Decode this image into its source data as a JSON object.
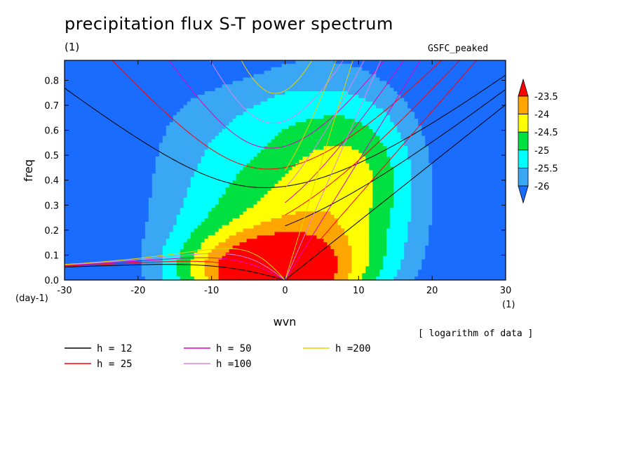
{
  "header": {
    "title": "precipitation flux S-T power spectrum",
    "units": "(1)",
    "dataset": "GSFC_peaked",
    "note": "[ logarithm of data ]"
  },
  "chart_data": {
    "type": "heatmap",
    "title": "precipitation flux S-T power spectrum",
    "xlabel": "wvn",
    "ylabel": "freq",
    "x_unit": "(1)",
    "y_unit": "(day-1)",
    "xlim": [
      -30,
      30
    ],
    "ylim": [
      0,
      0.88
    ],
    "x_ticks": [
      -30,
      -20,
      -10,
      0,
      10,
      20,
      30
    ],
    "x_tick_labels": [
      "-30",
      "-20",
      "-10",
      "0",
      "10",
      "20",
      "30"
    ],
    "y_ticks": [
      0,
      0.1,
      0.2,
      0.3,
      0.4,
      0.5,
      0.6,
      0.7,
      0.8
    ],
    "y_tick_labels": [
      "0.0",
      "0.1",
      "0.2",
      "0.3",
      "0.4",
      "0.5",
      "0.6",
      "0.7",
      "0.8"
    ],
    "colorbar": {
      "levels": [
        -26,
        -25.5,
        -25,
        -24.5,
        -24,
        -23.5
      ],
      "labels": [
        "-26",
        "-25.5",
        "-25",
        "-24.5",
        "-24",
        "-23.5"
      ],
      "colors": [
        "#1a6cff",
        "#3aa7f5",
        "#00ffff",
        "#00e040",
        "#ffff00",
        "#ffa500",
        "#ff0000"
      ]
    },
    "contour_levels": [
      -26,
      -25.5,
      -25,
      -24.5,
      -24,
      -23.5
    ],
    "dispersion_curves": [
      {
        "name": "h = 12",
        "h": 12,
        "color": "#000000"
      },
      {
        "name": "h = 25",
        "h": 25,
        "color": "#ff0000"
      },
      {
        "name": "h = 50",
        "h": 50,
        "color": "#e000c0"
      },
      {
        "name": "h =100",
        "h": 100,
        "color": "#e080e8"
      },
      {
        "name": "h =200",
        "h": 200,
        "color": "#e8d000"
      }
    ],
    "legend_placement": "bottom"
  }
}
